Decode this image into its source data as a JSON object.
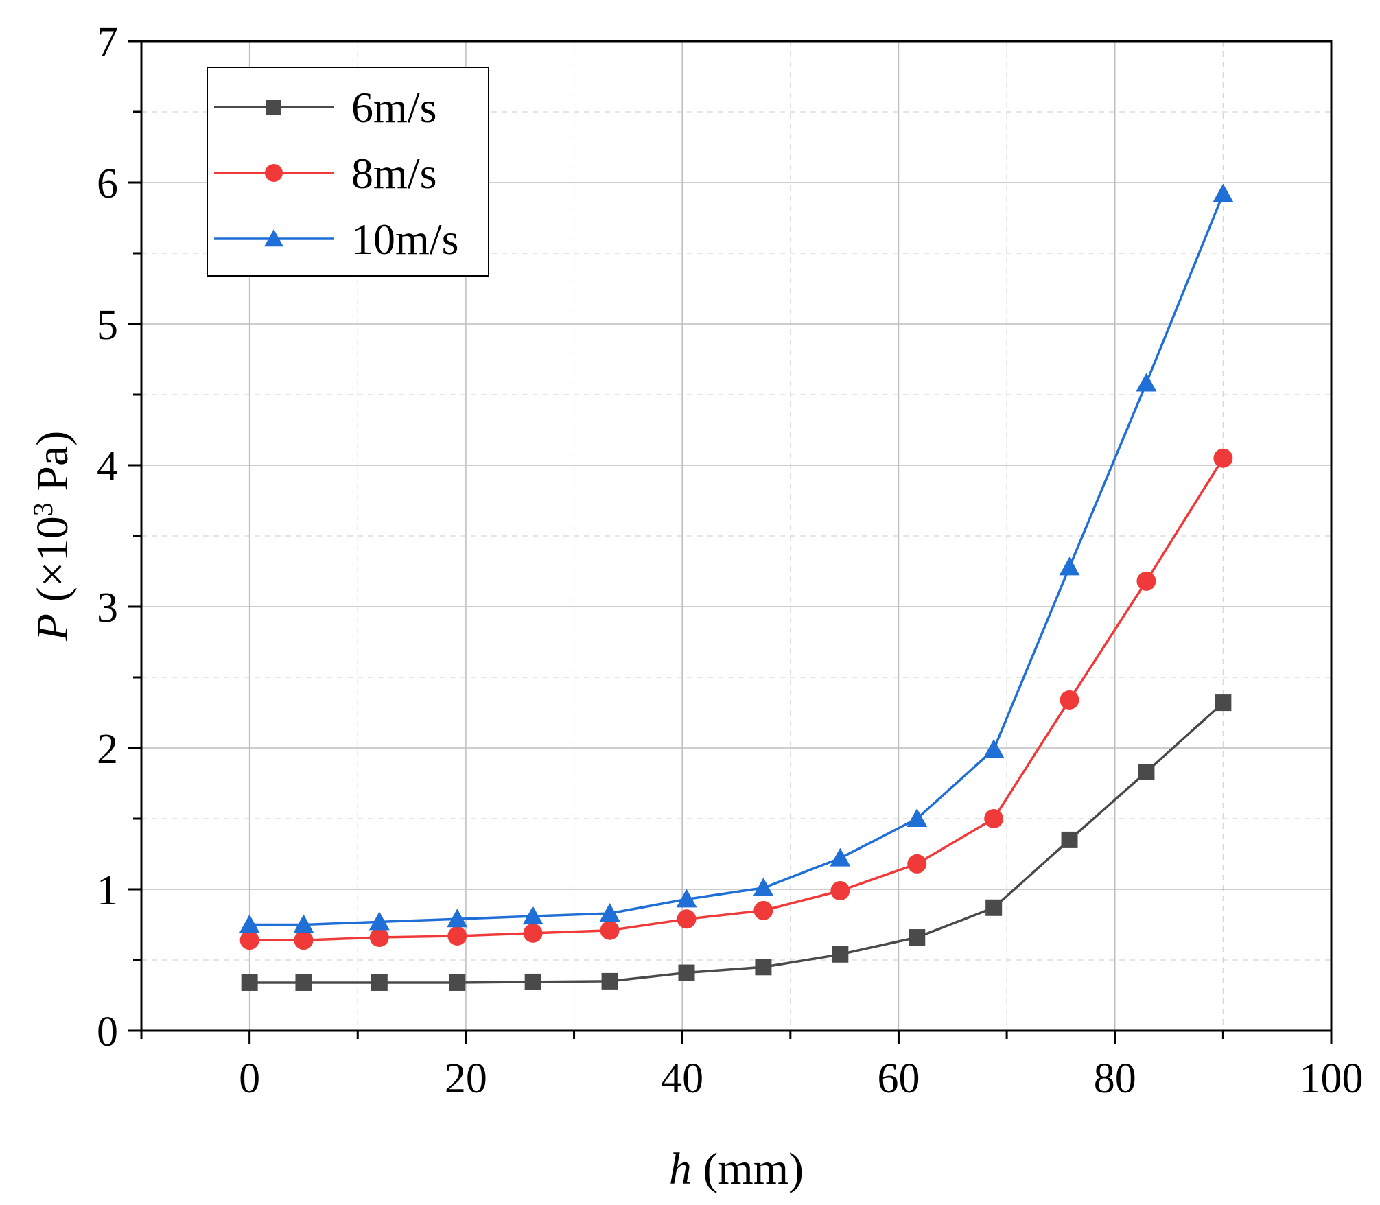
{
  "chart_data": {
    "type": "line",
    "title": "",
    "xlabel_var": "h",
    "xlabel_rest": " (mm)",
    "ylabel_var": "P",
    "ylabel_pre": " (×10",
    "ylabel_exp": "3",
    "ylabel_post": " Pa)",
    "xlim": [
      -10,
      100
    ],
    "ylim": [
      0,
      7
    ],
    "xticks": [
      0,
      20,
      40,
      60,
      80,
      100
    ],
    "yticks": [
      0,
      1,
      2,
      3,
      4,
      5,
      6,
      7
    ],
    "grid": true,
    "legend_position": "top-left",
    "x": [
      0,
      5,
      12,
      19.2,
      26.2,
      33.3,
      40.4,
      47.5,
      54.6,
      61.7,
      68.8,
      75.8,
      82.9,
      90
    ],
    "series": [
      {
        "name": "6m/s",
        "color": "#4a4a4a",
        "marker": "square",
        "values": [
          0.34,
          0.34,
          0.34,
          0.34,
          0.345,
          0.35,
          0.41,
          0.45,
          0.54,
          0.66,
          0.87,
          1.35,
          1.83,
          2.32
        ]
      },
      {
        "name": "8m/s",
        "color": "#f03a3a",
        "marker": "circle",
        "values": [
          0.64,
          0.64,
          0.66,
          0.67,
          0.69,
          0.71,
          0.79,
          0.85,
          0.99,
          1.18,
          1.5,
          2.34,
          3.18,
          4.05
        ]
      },
      {
        "name": "10m/s",
        "color": "#1f6fd6",
        "marker": "triangle",
        "values": [
          0.75,
          0.75,
          0.77,
          0.79,
          0.81,
          0.83,
          0.93,
          1.01,
          1.22,
          1.5,
          1.99,
          3.28,
          4.58,
          5.92
        ]
      }
    ]
  }
}
